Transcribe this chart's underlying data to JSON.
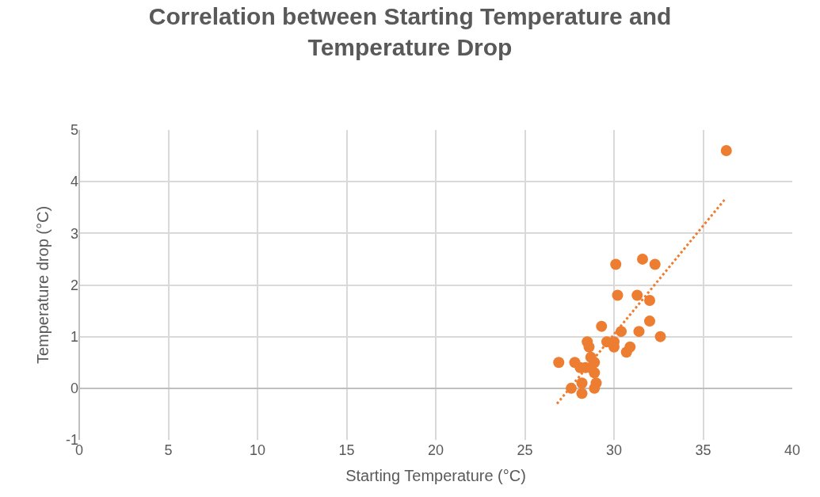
{
  "chart_data": {
    "type": "scatter",
    "title": "Correlation between Starting Temperature and Temperature Drop",
    "xlabel": "Starting Temperature (°C)",
    "ylabel": "Temperature drop (°C)",
    "xlim": [
      0,
      40
    ],
    "xticks": [
      0,
      5,
      10,
      15,
      20,
      25,
      30,
      35,
      40
    ],
    "ylim": [
      -1,
      5
    ],
    "yticks": [
      -1,
      0,
      1,
      2,
      3,
      4,
      5
    ],
    "grid": true,
    "series": [
      {
        "color": "#ed7d31",
        "marker": "circle",
        "x": [
          26.9,
          27.6,
          27.8,
          28.1,
          28.2,
          28.2,
          28.4,
          28.5,
          28.6,
          28.7,
          28.9,
          28.9,
          28.9,
          29.0,
          28.7,
          29.3,
          29.6,
          30.0,
          30.0,
          30.1,
          30.2,
          30.4,
          30.7,
          30.9,
          31.3,
          31.4,
          31.6,
          32.0,
          32.0,
          32.3,
          32.6,
          36.3
        ],
        "values": [
          0.5,
          0,
          0.5,
          0.4,
          0.1,
          -0.1,
          0.4,
          0.9,
          0.8,
          0.6,
          0.5,
          0.3,
          0,
          0.1,
          0.4,
          1.2,
          0.9,
          0.9,
          0.8,
          2.4,
          1.8,
          1.1,
          0.7,
          0.8,
          1.8,
          1.1,
          2.5,
          1.7,
          1.3,
          2.4,
          1.0,
          4.6
        ]
      },
      {
        "type": "line",
        "color": "#ed7d31",
        "line_style": "dotted",
        "x": [
          26.8,
          36.2
        ],
        "values": [
          -0.3,
          3.65
        ]
      }
    ]
  }
}
